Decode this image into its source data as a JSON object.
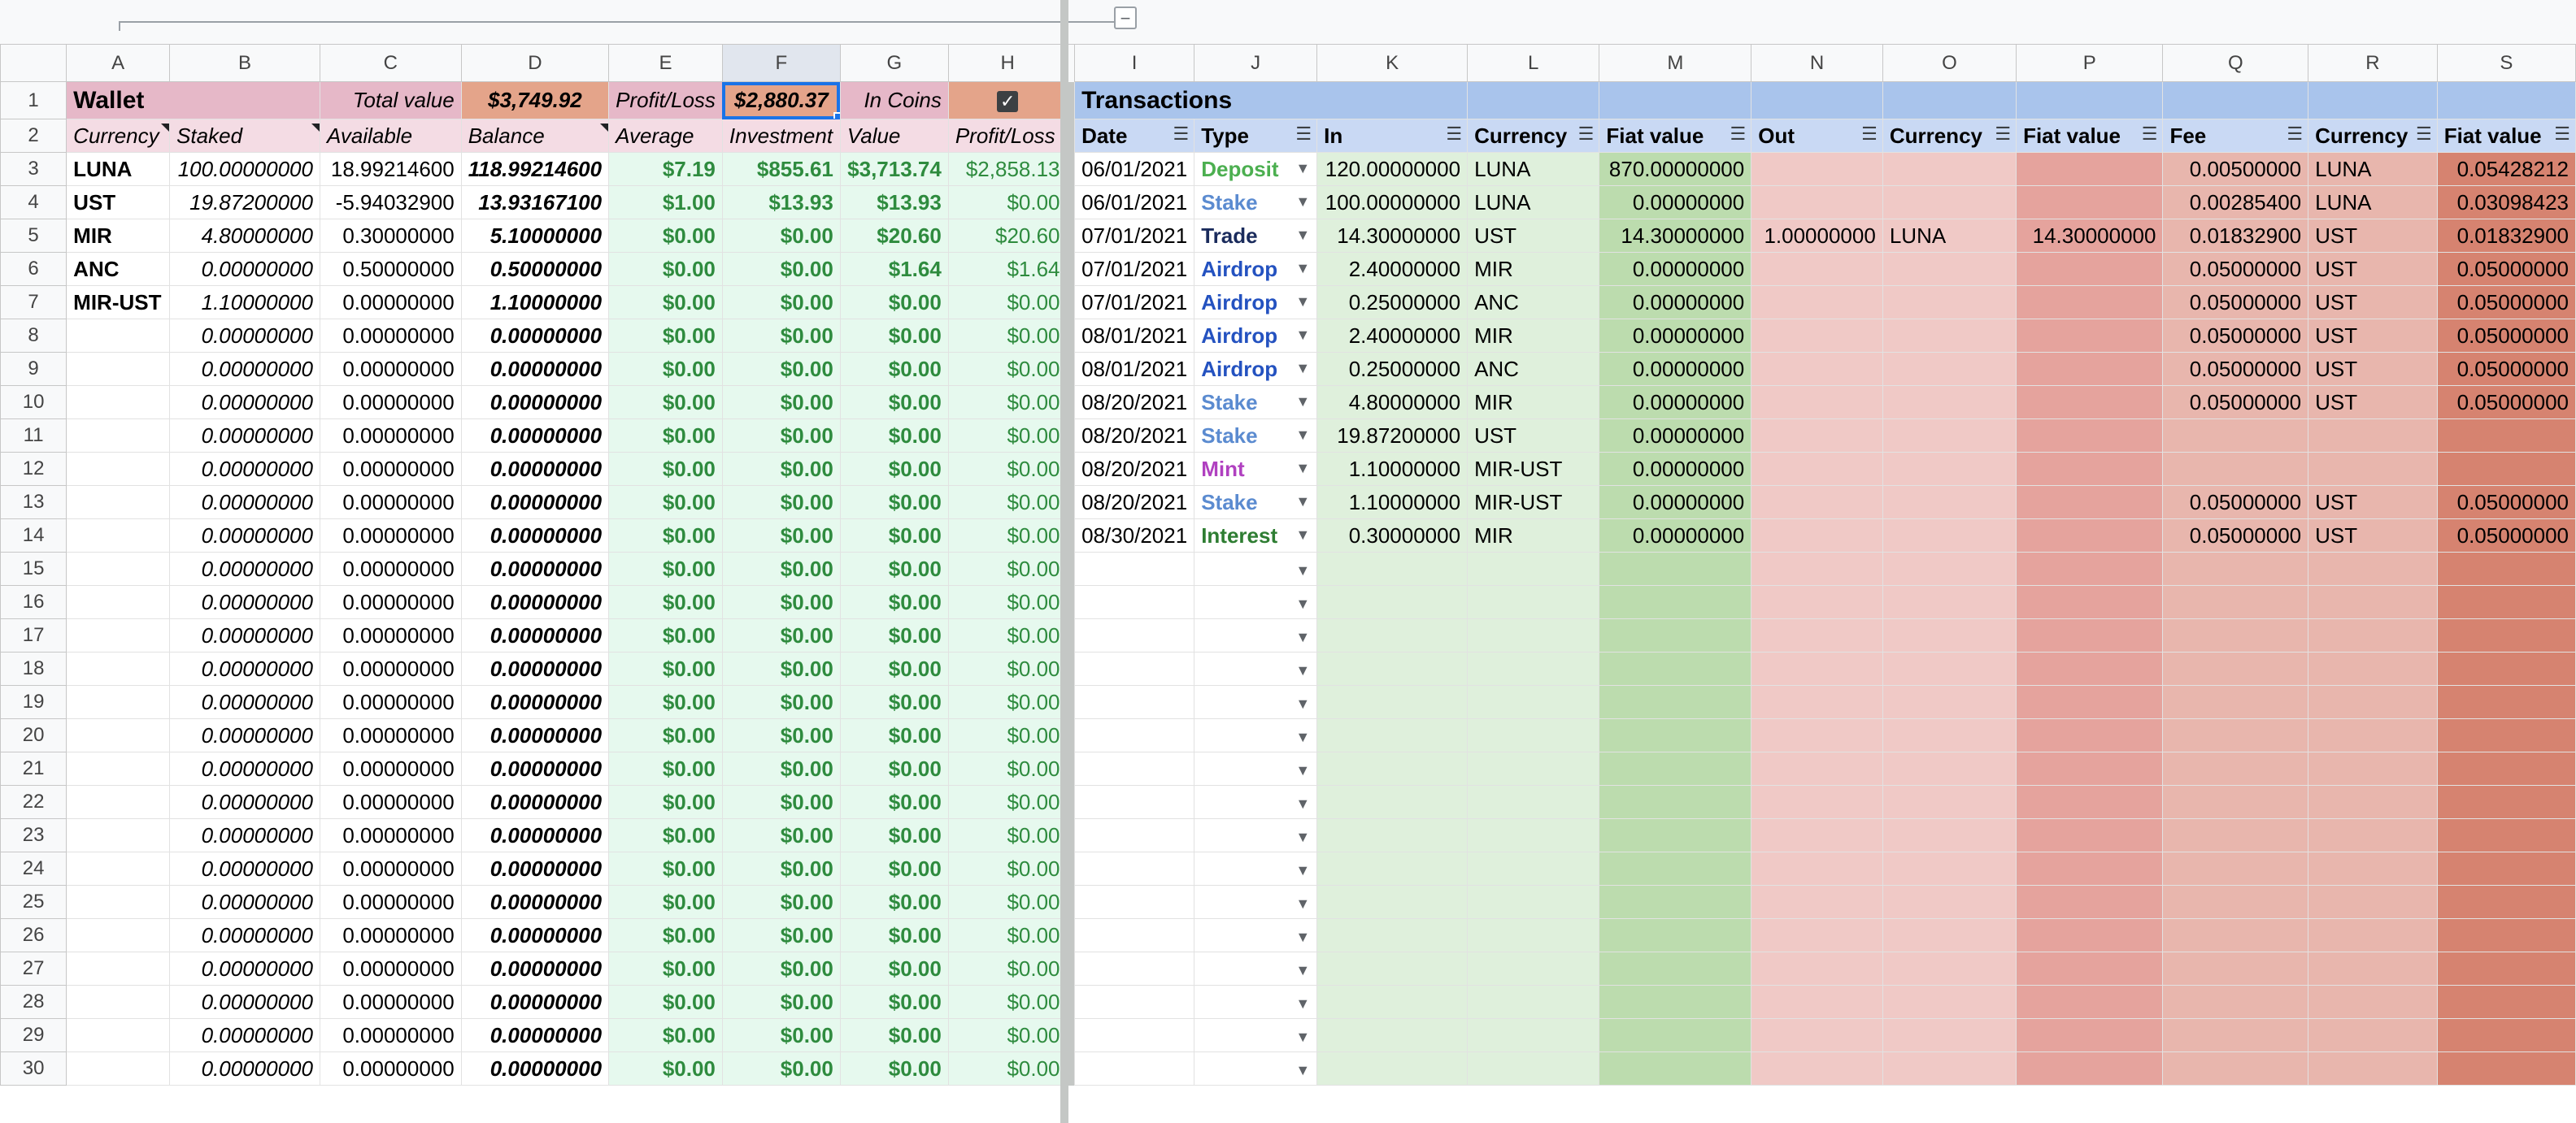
{
  "columns": [
    "A",
    "B",
    "C",
    "D",
    "E",
    "F",
    "G",
    "H",
    "I",
    "J",
    "K",
    "L",
    "M",
    "N",
    "O",
    "P",
    "Q",
    "R",
    "S"
  ],
  "wallet": {
    "title": "Wallet",
    "total_value_label": "Total value",
    "total_value": "$3,749.92",
    "profit_loss_label": "Profit/Loss",
    "profit_loss_value": "$2,880.37",
    "in_coins_label": "In Coins",
    "in_coins_checked": true,
    "headers": [
      "Currency",
      "Staked",
      "Available",
      "Balance",
      "Average",
      "Investment",
      "Value",
      "Profit/Loss"
    ],
    "rows": [
      [
        "LUNA",
        "100.00000000",
        "18.99214600",
        "118.99214600",
        "$7.19",
        "$855.61",
        "$3,713.74",
        "$2,858.13"
      ],
      [
        "UST",
        "19.87200000",
        "-5.94032900",
        "13.93167100",
        "$1.00",
        "$13.93",
        "$13.93",
        "$0.00"
      ],
      [
        "MIR",
        "4.80000000",
        "0.30000000",
        "5.10000000",
        "$0.00",
        "$0.00",
        "$20.60",
        "$20.60"
      ],
      [
        "ANC",
        "0.00000000",
        "0.50000000",
        "0.50000000",
        "$0.00",
        "$0.00",
        "$1.64",
        "$1.64"
      ],
      [
        "MIR-UST",
        "1.10000000",
        "0.00000000",
        "1.10000000",
        "$0.00",
        "$0.00",
        "$0.00",
        "$0.00"
      ],
      [
        "",
        "0.00000000",
        "0.00000000",
        "0.00000000",
        "$0.00",
        "$0.00",
        "$0.00",
        "$0.00"
      ],
      [
        "",
        "0.00000000",
        "0.00000000",
        "0.00000000",
        "$0.00",
        "$0.00",
        "$0.00",
        "$0.00"
      ],
      [
        "",
        "0.00000000",
        "0.00000000",
        "0.00000000",
        "$0.00",
        "$0.00",
        "$0.00",
        "$0.00"
      ],
      [
        "",
        "0.00000000",
        "0.00000000",
        "0.00000000",
        "$0.00",
        "$0.00",
        "$0.00",
        "$0.00"
      ],
      [
        "",
        "0.00000000",
        "0.00000000",
        "0.00000000",
        "$0.00",
        "$0.00",
        "$0.00",
        "$0.00"
      ],
      [
        "",
        "0.00000000",
        "0.00000000",
        "0.00000000",
        "$0.00",
        "$0.00",
        "$0.00",
        "$0.00"
      ],
      [
        "",
        "0.00000000",
        "0.00000000",
        "0.00000000",
        "$0.00",
        "$0.00",
        "$0.00",
        "$0.00"
      ],
      [
        "",
        "0.00000000",
        "0.00000000",
        "0.00000000",
        "$0.00",
        "$0.00",
        "$0.00",
        "$0.00"
      ],
      [
        "",
        "0.00000000",
        "0.00000000",
        "0.00000000",
        "$0.00",
        "$0.00",
        "$0.00",
        "$0.00"
      ],
      [
        "",
        "0.00000000",
        "0.00000000",
        "0.00000000",
        "$0.00",
        "$0.00",
        "$0.00",
        "$0.00"
      ],
      [
        "",
        "0.00000000",
        "0.00000000",
        "0.00000000",
        "$0.00",
        "$0.00",
        "$0.00",
        "$0.00"
      ],
      [
        "",
        "0.00000000",
        "0.00000000",
        "0.00000000",
        "$0.00",
        "$0.00",
        "$0.00",
        "$0.00"
      ],
      [
        "",
        "0.00000000",
        "0.00000000",
        "0.00000000",
        "$0.00",
        "$0.00",
        "$0.00",
        "$0.00"
      ],
      [
        "",
        "0.00000000",
        "0.00000000",
        "0.00000000",
        "$0.00",
        "$0.00",
        "$0.00",
        "$0.00"
      ],
      [
        "",
        "0.00000000",
        "0.00000000",
        "0.00000000",
        "$0.00",
        "$0.00",
        "$0.00",
        "$0.00"
      ],
      [
        "",
        "0.00000000",
        "0.00000000",
        "0.00000000",
        "$0.00",
        "$0.00",
        "$0.00",
        "$0.00"
      ],
      [
        "",
        "0.00000000",
        "0.00000000",
        "0.00000000",
        "$0.00",
        "$0.00",
        "$0.00",
        "$0.00"
      ],
      [
        "",
        "0.00000000",
        "0.00000000",
        "0.00000000",
        "$0.00",
        "$0.00",
        "$0.00",
        "$0.00"
      ],
      [
        "",
        "0.00000000",
        "0.00000000",
        "0.00000000",
        "$0.00",
        "$0.00",
        "$0.00",
        "$0.00"
      ],
      [
        "",
        "0.00000000",
        "0.00000000",
        "0.00000000",
        "$0.00",
        "$0.00",
        "$0.00",
        "$0.00"
      ],
      [
        "",
        "0.00000000",
        "0.00000000",
        "0.00000000",
        "$0.00",
        "$0.00",
        "$0.00",
        "$0.00"
      ],
      [
        "",
        "0.00000000",
        "0.00000000",
        "0.00000000",
        "$0.00",
        "$0.00",
        "$0.00",
        "$0.00"
      ],
      [
        "",
        "0.00000000",
        "0.00000000",
        "0.00000000",
        "$0.00",
        "$0.00",
        "$0.00",
        "$0.00"
      ]
    ]
  },
  "transactions": {
    "title": "Transactions",
    "headers": [
      "Date",
      "Type",
      "In",
      "Currency",
      "Fiat value",
      "Out",
      "Currency",
      "Fiat value",
      "Fee",
      "Currency",
      "Fiat value"
    ],
    "rows": [
      [
        "06/01/2021",
        "Deposit",
        "120.00000000",
        "LUNA",
        "870.00000000",
        "",
        "",
        "",
        "0.00500000",
        "LUNA",
        "0.05428212"
      ],
      [
        "06/01/2021",
        "Stake",
        "100.00000000",
        "LUNA",
        "0.00000000",
        "",
        "",
        "",
        "0.00285400",
        "LUNA",
        "0.03098423"
      ],
      [
        "07/01/2021",
        "Trade",
        "14.30000000",
        "UST",
        "14.30000000",
        "1.00000000",
        "LUNA",
        "14.30000000",
        "0.01832900",
        "UST",
        "0.01832900"
      ],
      [
        "07/01/2021",
        "Airdrop",
        "2.40000000",
        "MIR",
        "0.00000000",
        "",
        "",
        "",
        "0.05000000",
        "UST",
        "0.05000000"
      ],
      [
        "07/01/2021",
        "Airdrop",
        "0.25000000",
        "ANC",
        "0.00000000",
        "",
        "",
        "",
        "0.05000000",
        "UST",
        "0.05000000"
      ],
      [
        "08/01/2021",
        "Airdrop",
        "2.40000000",
        "MIR",
        "0.00000000",
        "",
        "",
        "",
        "0.05000000",
        "UST",
        "0.05000000"
      ],
      [
        "08/01/2021",
        "Airdrop",
        "0.25000000",
        "ANC",
        "0.00000000",
        "",
        "",
        "",
        "0.05000000",
        "UST",
        "0.05000000"
      ],
      [
        "08/20/2021",
        "Stake",
        "4.80000000",
        "MIR",
        "0.00000000",
        "",
        "",
        "",
        "0.05000000",
        "UST",
        "0.05000000"
      ],
      [
        "08/20/2021",
        "Stake",
        "19.87200000",
        "UST",
        "0.00000000",
        "",
        "",
        "",
        "",
        "",
        ""
      ],
      [
        "08/20/2021",
        "Mint",
        "1.10000000",
        "MIR-UST",
        "0.00000000",
        "",
        "",
        "",
        "",
        "",
        ""
      ],
      [
        "08/20/2021",
        "Stake",
        "1.10000000",
        "MIR-UST",
        "0.00000000",
        "",
        "",
        "",
        "0.05000000",
        "UST",
        "0.05000000"
      ],
      [
        "08/30/2021",
        "Interest",
        "0.30000000",
        "MIR",
        "0.00000000",
        "",
        "",
        "",
        "0.05000000",
        "UST",
        "0.05000000"
      ]
    ]
  }
}
